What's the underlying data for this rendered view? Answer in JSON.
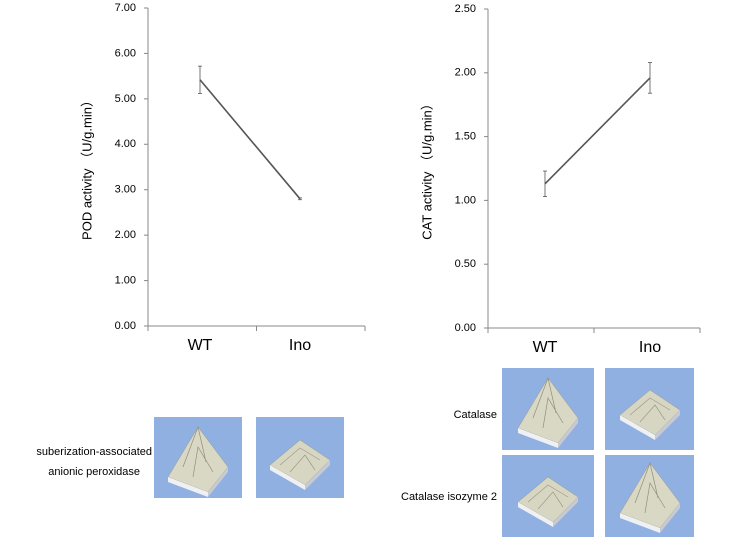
{
  "chart_data": [
    {
      "type": "line",
      "ylabel": "POD activity （U/g.min）",
      "categories": [
        "WT",
        "Ino"
      ],
      "values": [
        5.42,
        2.8
      ],
      "errors": [
        0.3,
        0.02
      ],
      "color": "#555555",
      "ylim": [
        0,
        7
      ],
      "yticks": [
        {
          "value": 0,
          "label": "0.00"
        },
        {
          "value": 1,
          "label": "1.00"
        },
        {
          "value": 2,
          "label": "2.00"
        },
        {
          "value": 3,
          "label": "3.00"
        },
        {
          "value": 4,
          "label": "4.00"
        },
        {
          "value": 5,
          "label": "5.00"
        },
        {
          "value": 6,
          "label": "6.00"
        },
        {
          "value": 7,
          "label": "7.00"
        }
      ]
    },
    {
      "type": "line",
      "ylabel": "CAT activity （U/g.min）",
      "categories": [
        "WT",
        "Ino"
      ],
      "values": [
        1.13,
        1.96
      ],
      "errors": [
        0.1,
        0.12
      ],
      "color": "#555555",
      "ylim": [
        0,
        2.5
      ],
      "yticks": [
        {
          "value": 0,
          "label": "0.00"
        },
        {
          "value": 0.5,
          "label": "0.50"
        },
        {
          "value": 1,
          "label": "1.00"
        },
        {
          "value": 1.5,
          "label": "1.50"
        },
        {
          "value": 2,
          "label": "2.00"
        },
        {
          "value": 2.5,
          "label": "2.50"
        }
      ]
    }
  ],
  "panels": {
    "pod_label": [
      "suberization-associated",
      "anionic peroxidase"
    ],
    "cat_labels": [
      "Catalase",
      "Catalase isozyme 2"
    ]
  }
}
